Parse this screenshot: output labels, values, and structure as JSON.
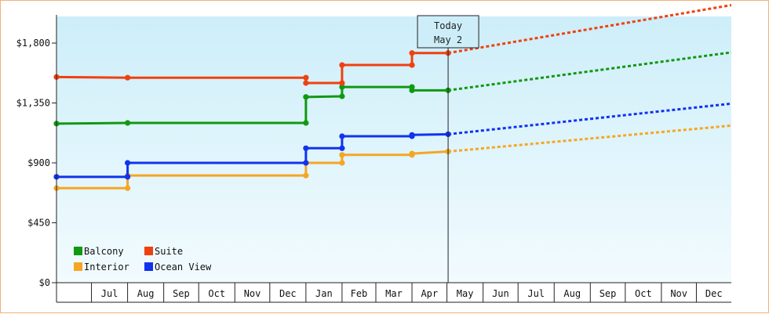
{
  "chart_data": {
    "type": "line",
    "step": true,
    "title": "",
    "xlabel": "",
    "ylabel": "",
    "ylim": [
      0,
      2000
    ],
    "y_ticks": [
      0,
      450,
      900,
      1350,
      1800
    ],
    "y_tick_labels": [
      "$0",
      "$450",
      "$900",
      "$1,350",
      "$1,800"
    ],
    "x_range": [
      "2023-06-01",
      "2024-12-31"
    ],
    "month_labels": [
      "Jul",
      "Aug",
      "Sep",
      "Oct",
      "Nov",
      "Dec",
      "Jan",
      "Feb",
      "Mar",
      "Apr",
      "May",
      "Jun",
      "Jul",
      "Aug",
      "Sep",
      "Oct",
      "Nov",
      "Dec"
    ],
    "today_label": "Today",
    "today_date_label": "May 2",
    "today_date": "2024-05-02",
    "grid": false,
    "legend_position": "bottom-left",
    "series": [
      {
        "name": "Balcony",
        "color": "#119911",
        "points": [
          [
            "2023-06-01",
            1195
          ],
          [
            "2023-08-01",
            1200
          ],
          [
            "2024-01-01",
            1200
          ],
          [
            "2024-01-01",
            1395
          ],
          [
            "2024-02-01",
            1400
          ],
          [
            "2024-02-01",
            1470
          ],
          [
            "2024-04-01",
            1470
          ],
          [
            "2024-04-01",
            1445
          ],
          [
            "2024-05-02",
            1445
          ]
        ],
        "projection": [
          [
            "2024-05-02",
            1445
          ],
          [
            "2024-12-31",
            1730
          ]
        ]
      },
      {
        "name": "Suite",
        "color": "#f04010",
        "points": [
          [
            "2023-06-01",
            1545
          ],
          [
            "2023-08-01",
            1540
          ],
          [
            "2024-01-01",
            1540
          ],
          [
            "2024-01-01",
            1500
          ],
          [
            "2024-02-01",
            1500
          ],
          [
            "2024-02-01",
            1635
          ],
          [
            "2024-04-01",
            1635
          ],
          [
            "2024-04-01",
            1725
          ],
          [
            "2024-05-02",
            1725
          ]
        ],
        "projection": [
          [
            "2024-05-02",
            1725
          ],
          [
            "2024-12-31",
            2085
          ]
        ]
      },
      {
        "name": "Interior",
        "color": "#f5a623",
        "points": [
          [
            "2023-06-01",
            710
          ],
          [
            "2023-08-01",
            710
          ],
          [
            "2023-08-01",
            805
          ],
          [
            "2024-01-01",
            805
          ],
          [
            "2024-01-01",
            900
          ],
          [
            "2024-02-01",
            900
          ],
          [
            "2024-02-01",
            960
          ],
          [
            "2024-04-01",
            960
          ],
          [
            "2024-04-01",
            970
          ],
          [
            "2024-05-02",
            985
          ]
        ],
        "projection": [
          [
            "2024-05-02",
            985
          ],
          [
            "2024-12-31",
            1180
          ]
        ]
      },
      {
        "name": "Ocean View",
        "color": "#1133ee",
        "points": [
          [
            "2023-06-01",
            795
          ],
          [
            "2023-08-01",
            795
          ],
          [
            "2023-08-01",
            900
          ],
          [
            "2024-01-01",
            900
          ],
          [
            "2024-01-01",
            1010
          ],
          [
            "2024-02-01",
            1010
          ],
          [
            "2024-02-01",
            1100
          ],
          [
            "2024-04-01",
            1100
          ],
          [
            "2024-04-01",
            1110
          ],
          [
            "2024-05-02",
            1115
          ]
        ],
        "projection": [
          [
            "2024-05-02",
            1115
          ],
          [
            "2024-12-31",
            1345
          ]
        ]
      }
    ]
  },
  "legend": [
    {
      "label": "Balcony",
      "color": "#119911"
    },
    {
      "label": "Suite",
      "color": "#f04010"
    },
    {
      "label": "Interior",
      "color": "#f5a623"
    },
    {
      "label": "Ocean View",
      "color": "#1133ee"
    }
  ]
}
